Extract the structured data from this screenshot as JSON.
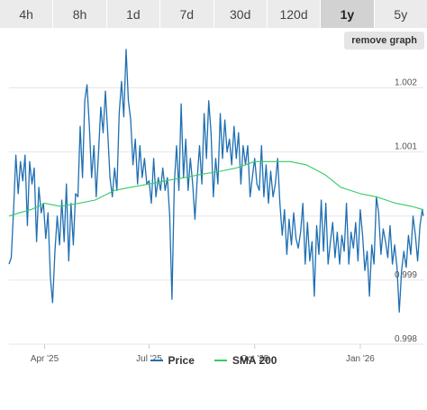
{
  "tabs": [
    {
      "label": "4h",
      "active": false
    },
    {
      "label": "8h",
      "active": false
    },
    {
      "label": "1d",
      "active": false
    },
    {
      "label": "7d",
      "active": false
    },
    {
      "label": "30d",
      "active": false
    },
    {
      "label": "120d",
      "active": false
    },
    {
      "label": "1y",
      "active": true
    },
    {
      "label": "5y",
      "active": false
    }
  ],
  "remove_graph_label": "remove graph",
  "colors": {
    "price": "#1f6fb2",
    "sma": "#33cc66",
    "grid": "#e6e6e6",
    "axis_text": "#555555"
  },
  "chart_data": {
    "type": "line",
    "x_tick_labels": [
      "Apr '25",
      "Jul '25",
      "Oct '25",
      "Jan '26"
    ],
    "y_tick_labels": [
      "0.998",
      "0.999",
      "1.001",
      "1.002"
    ],
    "ylim": [
      0.998,
      1.0025
    ],
    "grid": true,
    "legend_position": "bottom-center",
    "x_range": [
      "2025-03-01",
      "2026-02-25"
    ],
    "series": [
      {
        "name": "Price",
        "color": "#1f6fb2",
        "points": [
          [
            "2025-03-01",
            0.99925
          ],
          [
            "2025-03-03",
            0.99935
          ],
          [
            "2025-03-05",
            1.0001
          ],
          [
            "2025-03-07",
            1.00095
          ],
          [
            "2025-03-09",
            1.00035
          ],
          [
            "2025-03-11",
            1.00085
          ],
          [
            "2025-03-13",
            1.00055
          ],
          [
            "2025-03-15",
            1.00095
          ],
          [
            "2025-03-17",
            0.99985
          ],
          [
            "2025-03-19",
            1.00085
          ],
          [
            "2025-03-21",
            1.0005
          ],
          [
            "2025-03-23",
            1.00075
          ],
          [
            "2025-03-25",
            0.9996
          ],
          [
            "2025-03-27",
            1.00045
          ],
          [
            "2025-03-29",
            1.00005
          ],
          [
            "2025-03-31",
            1.0002
          ],
          [
            "2025-04-02",
            0.99965
          ],
          [
            "2025-04-04",
            1.00005
          ],
          [
            "2025-04-06",
            0.99905
          ],
          [
            "2025-04-08",
            0.99865
          ],
          [
            "2025-04-10",
            0.99945
          ],
          [
            "2025-04-12",
            1.0
          ],
          [
            "2025-04-14",
            0.99955
          ],
          [
            "2025-04-16",
            1.00025
          ],
          [
            "2025-04-18",
            0.9996
          ],
          [
            "2025-04-20",
            1.0005
          ],
          [
            "2025-04-22",
            0.9993
          ],
          [
            "2025-04-24",
            1.0002
          ],
          [
            "2025-04-26",
            0.99955
          ],
          [
            "2025-04-28",
            1.00035
          ],
          [
            "2025-04-30",
            1.0003
          ],
          [
            "2025-05-02",
            1.0014
          ],
          [
            "2025-05-04",
            1.0006
          ],
          [
            "2025-05-06",
            1.0018
          ],
          [
            "2025-05-08",
            1.00205
          ],
          [
            "2025-05-10",
            1.0014
          ],
          [
            "2025-05-12",
            1.0006
          ],
          [
            "2025-05-14",
            1.0011
          ],
          [
            "2025-05-16",
            1.0003
          ],
          [
            "2025-05-18",
            1.001
          ],
          [
            "2025-05-20",
            1.0017
          ],
          [
            "2025-05-22",
            1.0013
          ],
          [
            "2025-05-24",
            1.00195
          ],
          [
            "2025-05-26",
            1.0013
          ],
          [
            "2025-05-28",
            1.0006
          ],
          [
            "2025-05-30",
            1.0003
          ],
          [
            "2025-06-01",
            1.00075
          ],
          [
            "2025-06-03",
            1.0004
          ],
          [
            "2025-06-05",
            1.0016
          ],
          [
            "2025-06-07",
            1.0021
          ],
          [
            "2025-06-09",
            1.00155
          ],
          [
            "2025-06-11",
            1.0026
          ],
          [
            "2025-06-13",
            1.0018
          ],
          [
            "2025-06-15",
            1.0015
          ],
          [
            "2025-06-17",
            1.0008
          ],
          [
            "2025-06-19",
            1.0012
          ],
          [
            "2025-06-21",
            1.0005
          ],
          [
            "2025-06-23",
            1.0011
          ],
          [
            "2025-06-25",
            1.0006
          ],
          [
            "2025-06-27",
            1.0009
          ],
          [
            "2025-06-29",
            1.0005
          ],
          [
            "2025-07-01",
            1.00055
          ],
          [
            "2025-07-03",
            1.0002
          ],
          [
            "2025-07-05",
            1.0009
          ],
          [
            "2025-07-07",
            1.0003
          ],
          [
            "2025-07-09",
            1.0006
          ],
          [
            "2025-07-11",
            1.0004
          ],
          [
            "2025-07-13",
            1.00075
          ],
          [
            "2025-07-15",
            1.0004
          ],
          [
            "2025-07-17",
            1.0006
          ],
          [
            "2025-07-19",
            1.0
          ],
          [
            "2025-07-21",
            0.9987
          ],
          [
            "2025-07-23",
            1.0005
          ],
          [
            "2025-07-25",
            1.0011
          ],
          [
            "2025-07-27",
            1.0004
          ],
          [
            "2025-07-29",
            1.00175
          ],
          [
            "2025-07-31",
            1.0006
          ],
          [
            "2025-08-02",
            1.0012
          ],
          [
            "2025-08-04",
            1.0004
          ],
          [
            "2025-08-06",
            1.0009
          ],
          [
            "2025-08-08",
            1.0005
          ],
          [
            "2025-08-10",
            0.99995
          ],
          [
            "2025-08-12",
            1.0006
          ],
          [
            "2025-08-14",
            1.0011
          ],
          [
            "2025-08-16",
            1.0005
          ],
          [
            "2025-08-18",
            1.0016
          ],
          [
            "2025-08-20",
            1.0009
          ],
          [
            "2025-08-22",
            1.0018
          ],
          [
            "2025-08-24",
            1.0013
          ],
          [
            "2025-08-26",
            1.0003
          ],
          [
            "2025-08-28",
            1.0009
          ],
          [
            "2025-08-30",
            1.0005
          ],
          [
            "2025-09-01",
            1.0016
          ],
          [
            "2025-09-03",
            1.0009
          ],
          [
            "2025-09-05",
            1.0015
          ],
          [
            "2025-09-07",
            1.001
          ],
          [
            "2025-09-09",
            1.0012
          ],
          [
            "2025-09-11",
            1.0008
          ],
          [
            "2025-09-13",
            1.0014
          ],
          [
            "2025-09-15",
            1.0009
          ],
          [
            "2025-09-17",
            1.0013
          ],
          [
            "2025-09-19",
            1.0005
          ],
          [
            "2025-09-21",
            1.0011
          ],
          [
            "2025-09-23",
            1.0008
          ],
          [
            "2025-09-25",
            1.0011
          ],
          [
            "2025-09-27",
            1.0003
          ],
          [
            "2025-09-29",
            1.0006
          ],
          [
            "2025-10-01",
            1.0009
          ],
          [
            "2025-10-03",
            1.0005
          ],
          [
            "2025-10-05",
            1.0004
          ],
          [
            "2025-10-07",
            1.0011
          ],
          [
            "2025-10-09",
            1.0003
          ],
          [
            "2025-10-11",
            1.0008
          ],
          [
            "2025-10-13",
            1.0002
          ],
          [
            "2025-10-15",
            1.0007
          ],
          [
            "2025-10-17",
            1.0003
          ],
          [
            "2025-10-19",
            1.0005
          ],
          [
            "2025-10-21",
            1.0009
          ],
          [
            "2025-10-23",
            1.0002
          ],
          [
            "2025-10-25",
            0.9997
          ],
          [
            "2025-10-27",
            1.0001
          ],
          [
            "2025-10-29",
            0.9994
          ],
          [
            "2025-10-31",
            0.99995
          ],
          [
            "2025-11-02",
            0.99955
          ],
          [
            "2025-11-04",
            1.00005
          ],
          [
            "2025-11-06",
            0.99965
          ],
          [
            "2025-11-08",
            0.9995
          ],
          [
            "2025-11-10",
            0.99975
          ],
          [
            "2025-11-12",
            1.0002
          ],
          [
            "2025-11-14",
            0.99925
          ],
          [
            "2025-11-16",
            0.9999
          ],
          [
            "2025-11-18",
            0.9993
          ],
          [
            "2025-11-20",
            0.9996
          ],
          [
            "2025-11-22",
            0.99875
          ],
          [
            "2025-11-24",
            0.99985
          ],
          [
            "2025-11-26",
            0.9994
          ],
          [
            "2025-11-28",
            1.00025
          ],
          [
            "2025-11-30",
            0.99945
          ],
          [
            "2025-12-02",
            1.0002
          ],
          [
            "2025-12-04",
            0.99925
          ],
          [
            "2025-12-06",
            0.9996
          ],
          [
            "2025-12-08",
            0.9999
          ],
          [
            "2025-12-10",
            0.99935
          ],
          [
            "2025-12-12",
            0.99975
          ],
          [
            "2025-12-14",
            0.99925
          ],
          [
            "2025-12-16",
            0.9997
          ],
          [
            "2025-12-18",
            0.99945
          ],
          [
            "2025-12-20",
            1.0002
          ],
          [
            "2025-12-22",
            0.99925
          ],
          [
            "2025-12-24",
            0.99975
          ],
          [
            "2025-12-26",
            0.9995
          ],
          [
            "2025-12-28",
            0.9999
          ],
          [
            "2025-12-30",
            0.9993
          ],
          [
            "2026-01-01",
            1.0001
          ],
          [
            "2026-01-03",
            0.9997
          ],
          [
            "2026-01-05",
            0.99915
          ],
          [
            "2026-01-07",
            0.99945
          ],
          [
            "2026-01-09",
            0.99875
          ],
          [
            "2026-01-11",
            0.99955
          ],
          [
            "2026-01-13",
            0.99925
          ],
          [
            "2026-01-15",
            1.0003
          ],
          [
            "2026-01-17",
            1.00005
          ],
          [
            "2026-01-19",
            0.9994
          ],
          [
            "2026-01-21",
            0.9998
          ],
          [
            "2026-01-23",
            0.9996
          ],
          [
            "2026-01-25",
            0.99935
          ],
          [
            "2026-01-27",
            0.99985
          ],
          [
            "2026-01-29",
            0.99925
          ],
          [
            "2026-01-31",
            0.99955
          ],
          [
            "2026-02-02",
            0.9992
          ],
          [
            "2026-02-04",
            0.9985
          ],
          [
            "2026-02-06",
            0.99915
          ],
          [
            "2026-02-08",
            0.99945
          ],
          [
            "2026-02-10",
            0.9992
          ],
          [
            "2026-02-12",
            0.9997
          ],
          [
            "2026-02-14",
            0.9994
          ],
          [
            "2026-02-16",
            1.0
          ],
          [
            "2026-02-18",
            0.9997
          ],
          [
            "2026-02-20",
            0.9993
          ],
          [
            "2026-02-22",
            0.99985
          ],
          [
            "2026-02-24",
            1.0001
          ],
          [
            "2026-02-25",
            1.0
          ]
        ]
      },
      {
        "name": "SMA 200",
        "color": "#33cc66",
        "points": [
          [
            "2025-03-01",
            1.0
          ],
          [
            "2025-03-10",
            1.00005
          ],
          [
            "2025-03-20",
            1.0001
          ],
          [
            "2025-04-01",
            1.0002
          ],
          [
            "2025-04-15",
            1.00015
          ],
          [
            "2025-05-01",
            1.0002
          ],
          [
            "2025-05-15",
            1.00025
          ],
          [
            "2025-06-01",
            1.0004
          ],
          [
            "2025-06-15",
            1.00045
          ],
          [
            "2025-07-01",
            1.0005
          ],
          [
            "2025-07-15",
            1.00055
          ],
          [
            "2025-08-01",
            1.0006
          ],
          [
            "2025-08-15",
            1.00065
          ],
          [
            "2025-09-01",
            1.0007
          ],
          [
            "2025-09-15",
            1.00075
          ],
          [
            "2025-10-01",
            1.00085
          ],
          [
            "2025-10-15",
            1.00085
          ],
          [
            "2025-11-01",
            1.00085
          ],
          [
            "2025-11-15",
            1.0008
          ],
          [
            "2025-12-01",
            1.00065
          ],
          [
            "2025-12-15",
            1.00045
          ],
          [
            "2026-01-01",
            1.00035
          ],
          [
            "2026-01-15",
            1.0003
          ],
          [
            "2026-02-01",
            1.0002
          ],
          [
            "2026-02-15",
            1.00015
          ],
          [
            "2026-02-25",
            1.0001
          ]
        ]
      }
    ]
  }
}
